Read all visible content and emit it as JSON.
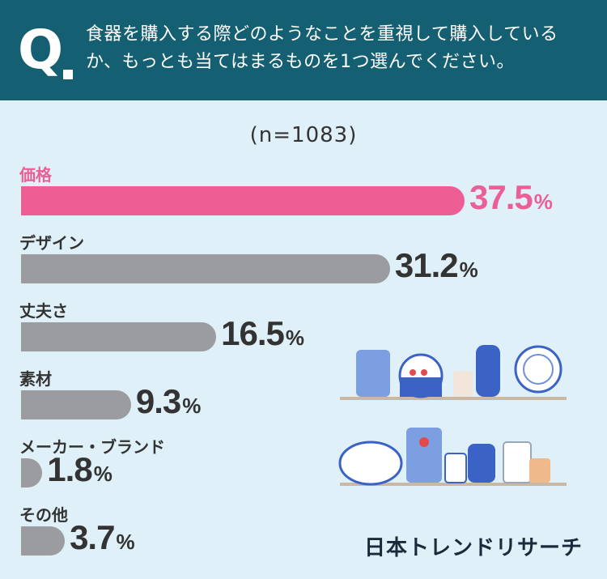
{
  "header": {
    "q": "Q",
    "question": "食器を購入する際どのようなことを重視して購入しているか、もっとも当てはまるものを1つ選んでください。"
  },
  "sample": "(n=1083)",
  "chart_data": {
    "type": "bar",
    "orientation": "horizontal",
    "categories": [
      "価格",
      "デザイン",
      "丈夫さ",
      "素材",
      "メーカー・ブランド",
      "その他"
    ],
    "values": [
      37.5,
      31.2,
      16.5,
      9.3,
      1.8,
      3.7
    ],
    "value_labels": [
      "37.5",
      "31.2",
      "16.5",
      "9.3",
      "1.8",
      "3.7"
    ],
    "unit": "%",
    "highlight_index": 0,
    "colors": {
      "highlight": "#ee5d94",
      "default": "#9a9c9f"
    }
  },
  "logo": "日本トレンドリサーチ"
}
